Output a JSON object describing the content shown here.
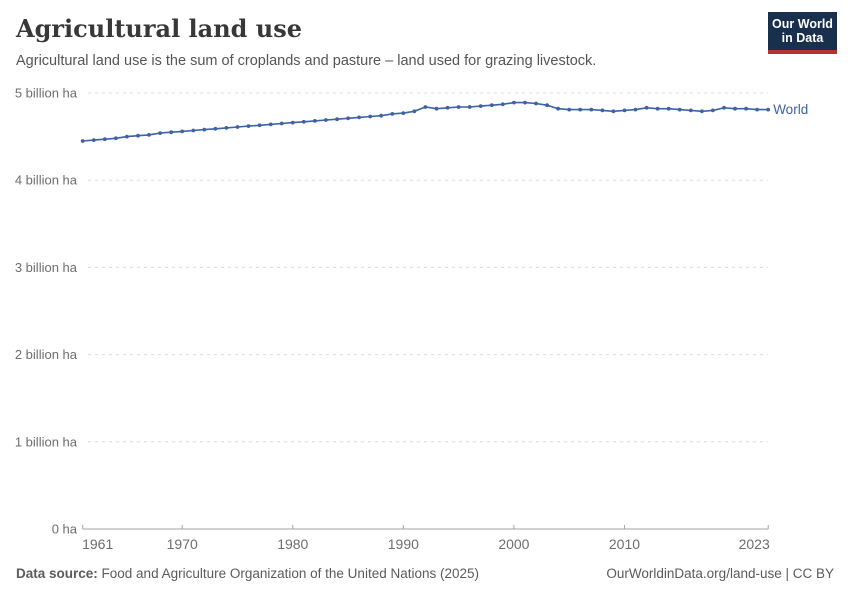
{
  "header": {
    "title": "Agricultural land use",
    "subtitle": "Agricultural land use is the sum of croplands and pasture – land used for grazing livestock.",
    "logo": {
      "line1": "Our World",
      "line2": "in Data"
    }
  },
  "chart_data": {
    "type": "line",
    "title": "Agricultural land use",
    "xlabel": "",
    "ylabel": "billion ha",
    "ylim": [
      0,
      5
    ],
    "grid": "horizontal-dashed",
    "legend_position": "end-of-line-label",
    "yticks": [
      {
        "value": 0,
        "label": "0 ha"
      },
      {
        "value": 1,
        "label": "1 billion ha"
      },
      {
        "value": 2,
        "label": "2 billion ha"
      },
      {
        "value": 3,
        "label": "3 billion ha"
      },
      {
        "value": 4,
        "label": "4 billion ha"
      },
      {
        "value": 5,
        "label": "5 billion ha"
      }
    ],
    "xticks": [
      1961,
      1970,
      1980,
      1990,
      2000,
      2010,
      2023
    ],
    "x": [
      1961,
      1962,
      1963,
      1964,
      1965,
      1966,
      1967,
      1968,
      1969,
      1970,
      1971,
      1972,
      1973,
      1974,
      1975,
      1976,
      1977,
      1978,
      1979,
      1980,
      1981,
      1982,
      1983,
      1984,
      1985,
      1986,
      1987,
      1988,
      1989,
      1990,
      1991,
      1992,
      1993,
      1994,
      1995,
      1996,
      1997,
      1998,
      1999,
      2000,
      2001,
      2002,
      2003,
      2004,
      2005,
      2006,
      2007,
      2008,
      2009,
      2010,
      2011,
      2012,
      2013,
      2014,
      2015,
      2016,
      2017,
      2018,
      2019,
      2020,
      2021,
      2022,
      2023
    ],
    "series": [
      {
        "name": "World",
        "unit": "billion ha",
        "values": [
          4.45,
          4.46,
          4.47,
          4.48,
          4.5,
          4.51,
          4.52,
          4.54,
          4.55,
          4.56,
          4.57,
          4.58,
          4.59,
          4.6,
          4.61,
          4.62,
          4.63,
          4.64,
          4.65,
          4.66,
          4.67,
          4.68,
          4.69,
          4.7,
          4.71,
          4.72,
          4.73,
          4.74,
          4.76,
          4.77,
          4.79,
          4.84,
          4.82,
          4.83,
          4.84,
          4.84,
          4.85,
          4.86,
          4.87,
          4.89,
          4.89,
          4.88,
          4.86,
          4.82,
          4.81,
          4.81,
          4.81,
          4.8,
          4.79,
          4.8,
          4.81,
          4.83,
          4.82,
          4.82,
          4.81,
          4.8,
          4.79,
          4.8,
          4.83,
          4.82,
          4.82,
          4.81,
          4.81
        ]
      }
    ]
  },
  "colors": {
    "series_blue": "#3d62a6",
    "logo_navy": "#18304e",
    "logo_red": "#b5332e"
  },
  "footer": {
    "source_label": "Data source:",
    "source_text": " Food and Agriculture Organization of the United Nations (2025)",
    "link_text": "OurWorldinData.org/land-use | CC BY"
  }
}
